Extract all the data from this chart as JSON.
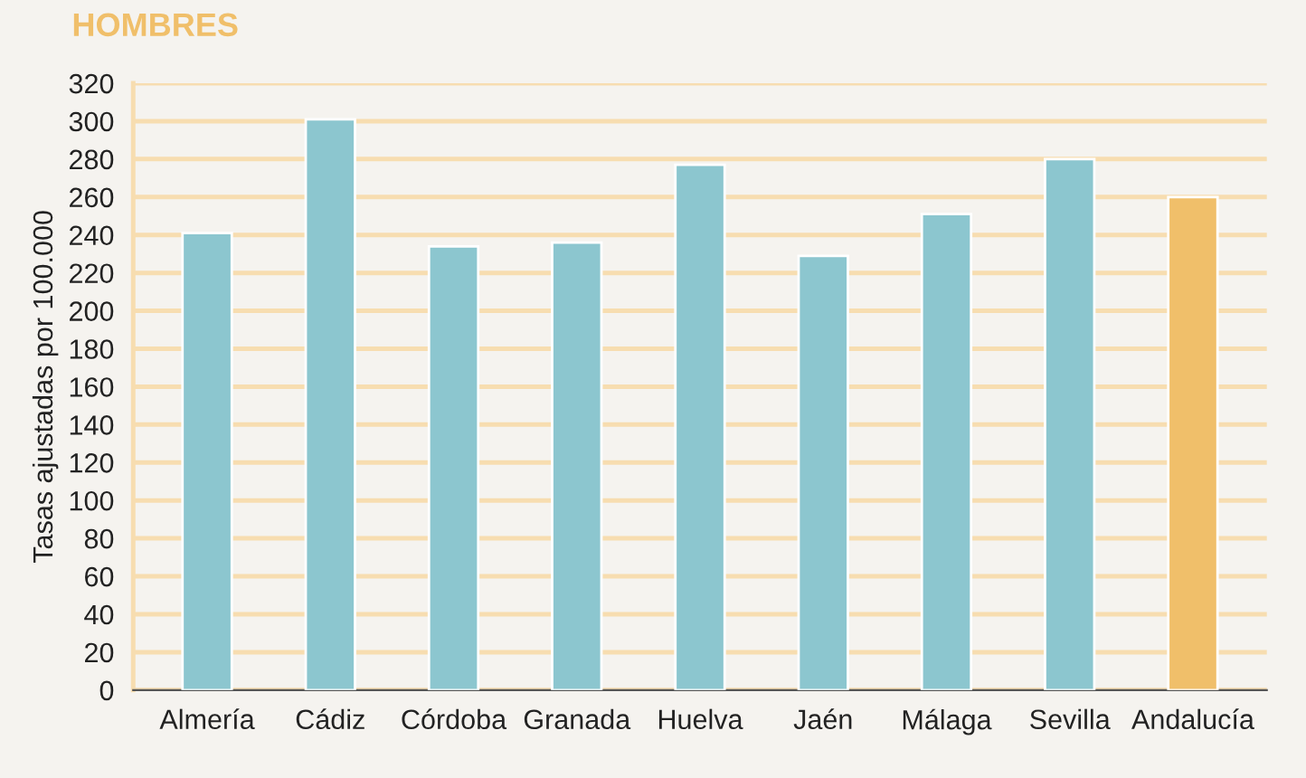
{
  "chart_data": {
    "type": "bar",
    "title": "HOMBRES",
    "ylabel": "Tasas ajustadas por 100.000",
    "categories": [
      "Almería",
      "Cádiz",
      "Córdoba",
      "Granada",
      "Huelva",
      "Jaén",
      "Málaga",
      "Sevilla",
      "Andalucía"
    ],
    "values": [
      241,
      301,
      234,
      236,
      277,
      229,
      251,
      280,
      260
    ],
    "colors": [
      "#8cc6cf",
      "#8cc6cf",
      "#8cc6cf",
      "#8cc6cf",
      "#8cc6cf",
      "#8cc6cf",
      "#8cc6cf",
      "#8cc6cf",
      "#f0bf6a"
    ],
    "ylim": [
      0,
      320
    ],
    "yticks": [
      0,
      20,
      40,
      60,
      80,
      100,
      120,
      140,
      160,
      180,
      200,
      220,
      240,
      260,
      280,
      300,
      320
    ],
    "grid": "y",
    "legend": false
  }
}
